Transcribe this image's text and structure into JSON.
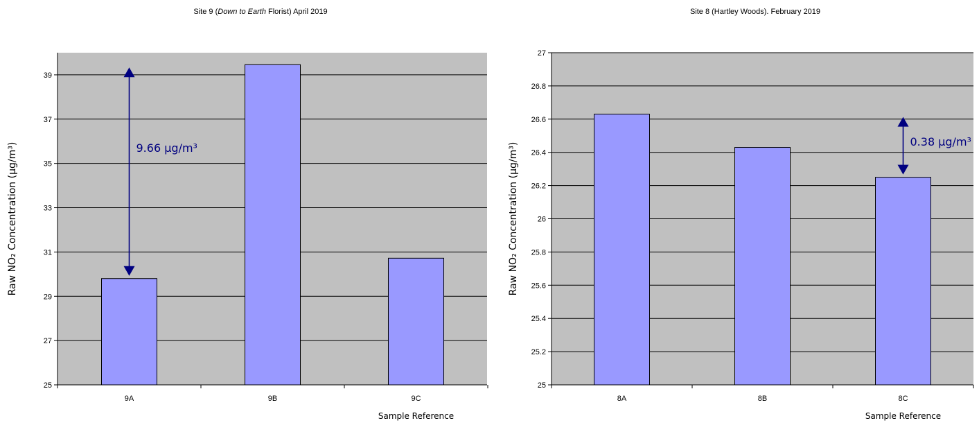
{
  "chart_data": [
    {
      "type": "bar",
      "title_pre": "Site 9 (",
      "title_italic": "Down to Earth",
      "title_post": " Florist)  April 2019",
      "ylabel": "Raw NO₂ Concentration (µg/m³)",
      "xlabel": "Sample Reference",
      "categories": [
        "9A",
        "9B",
        "9C"
      ],
      "values": [
        29.8,
        39.46,
        30.72
      ],
      "ylim": [
        25,
        40
      ],
      "yticks": [
        "25",
        "27",
        "29",
        "31",
        "33",
        "35",
        "37",
        "39"
      ],
      "grid": true,
      "annotation": {
        "text": "9.66 µg/m³",
        "from": 29.8,
        "to": 39.46,
        "category": "9A"
      }
    },
    {
      "type": "bar",
      "title_pre": "Site 8 (Hartley Woods).  February 2019",
      "title_italic": "",
      "title_post": "",
      "ylabel": "Raw NO₂ Concentration (µg/m³)",
      "xlabel": "Sample Reference",
      "categories": [
        "8A",
        "8B",
        "8C"
      ],
      "values": [
        26.63,
        26.43,
        26.25
      ],
      "ylim": [
        25,
        27
      ],
      "yticks": [
        "25",
        "25.2",
        "25.4",
        "25.6",
        "25.8",
        "26",
        "26.2",
        "26.4",
        "26.6",
        "26.8",
        "27"
      ],
      "grid": true,
      "annotation": {
        "text": "0.38 µg/m³",
        "from": 26.25,
        "to": 26.63,
        "category": "8C"
      }
    }
  ],
  "colors": {
    "plot_bg": "#c0c0c0",
    "bar_fill": "#9999ff",
    "bar_stroke": "#000000",
    "grid": "#000000",
    "annotation": "#000080"
  }
}
